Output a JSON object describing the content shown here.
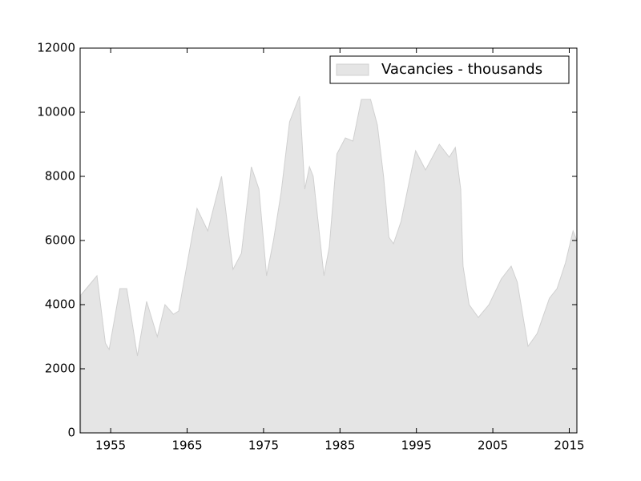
{
  "chart_data": {
    "type": "area",
    "x": [
      1951.1,
      1953.2,
      1954.3,
      1954.8,
      1956.2,
      1957.1,
      1958.5,
      1959.7,
      1961.1,
      1962.1,
      1963.2,
      1963.9,
      1966.3,
      1967.7,
      1969.5,
      1971.0,
      1972.1,
      1973.4,
      1974.4,
      1975.4,
      1976.3,
      1977.3,
      1978.4,
      1979.7,
      1980.4,
      1981.0,
      1981.5,
      1982.9,
      1983.6,
      1984.6,
      1985.7,
      1986.7,
      1987.8,
      1989.0,
      1989.9,
      1990.7,
      1991.4,
      1992.0,
      1993.0,
      1994.9,
      1996.2,
      1998.0,
      1999.3,
      2000.1,
      2000.8,
      2001.1,
      2001.9,
      2003.1,
      2004.5,
      2006.1,
      2007.4,
      2008.2,
      2009.6,
      2010.8,
      2012.4,
      2013.4,
      2014.5,
      2015.5,
      2016.0
    ],
    "series": [
      {
        "name": "Vacancies - thousands",
        "color": "#e5e5e5",
        "edge_color": "#d0d0d0",
        "values": [
          4300,
          4900,
          2800,
          2600,
          4500,
          4500,
          2400,
          4100,
          3000,
          4000,
          3700,
          3800,
          7000,
          6300,
          8000,
          5100,
          5600,
          8300,
          7600,
          4900,
          6000,
          7500,
          9700,
          10500,
          7600,
          8300,
          8000,
          4900,
          5800,
          8700,
          9200,
          9100,
          10400,
          10400,
          9600,
          8000,
          6100,
          5900,
          6600,
          8800,
          8200,
          9000,
          8600,
          8900,
          7600,
          5200,
          4000,
          3600,
          4000,
          4800,
          5200,
          4700,
          2700,
          3100,
          4200,
          4500,
          5300,
          6300,
          6000
        ]
      }
    ],
    "xlim": [
      1951,
      2016
    ],
    "xticks": [
      1955,
      1965,
      1975,
      1985,
      1995,
      2005,
      2015
    ],
    "ylim": [
      0,
      12000
    ],
    "yticks": [
      0,
      2000,
      4000,
      6000,
      8000,
      10000,
      12000
    ],
    "grid": false,
    "legend": "upper right"
  }
}
